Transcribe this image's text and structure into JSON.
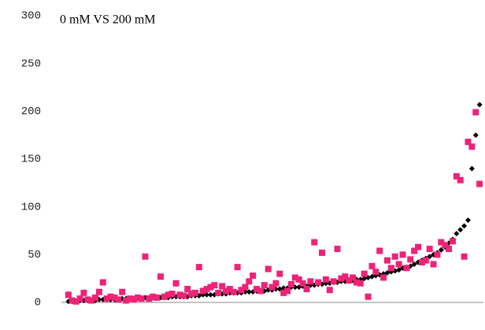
{
  "chart_data": {
    "type": "scatter",
    "title": "0 mM VS 200 mM",
    "x": [
      1,
      2,
      3,
      4,
      5,
      6,
      7,
      8,
      9,
      10,
      11,
      12,
      13,
      14,
      15,
      16,
      17,
      18,
      19,
      20,
      21,
      22,
      23,
      24,
      25,
      26,
      27,
      28,
      29,
      30,
      31,
      32,
      33,
      34,
      35,
      36,
      37,
      38,
      39,
      40,
      41,
      42,
      43,
      44,
      45,
      46,
      47,
      48,
      49,
      50,
      51,
      52,
      53,
      54,
      55,
      56,
      57,
      58,
      59,
      60,
      61,
      62,
      63,
      64,
      65,
      66,
      67,
      68,
      69,
      70,
      71,
      72,
      73,
      74,
      75,
      76,
      77,
      78,
      79,
      80,
      81,
      82,
      83,
      84,
      85,
      86,
      87,
      88,
      89,
      90,
      91,
      92,
      93,
      94,
      95,
      96,
      97,
      98,
      99,
      100,
      101,
      102,
      103,
      104,
      105,
      106,
      107,
      108
    ],
    "series": [
      {
        "color": "#000000",
        "marker": "diamond",
        "values": [
          1,
          1,
          1,
          2,
          2,
          2,
          2,
          2,
          3,
          3,
          3,
          3,
          3,
          3,
          4,
          4,
          4,
          4,
          4,
          4,
          5,
          5,
          5,
          5,
          5,
          5,
          5,
          6,
          6,
          6,
          6,
          6,
          7,
          7,
          7,
          8,
          8,
          8,
          8,
          9,
          9,
          9,
          10,
          10,
          10,
          10,
          11,
          11,
          11,
          12,
          12,
          12,
          13,
          13,
          14,
          14,
          15,
          15,
          16,
          16,
          16,
          17,
          17,
          18,
          18,
          19,
          19,
          20,
          20,
          21,
          21,
          22,
          22,
          23,
          23,
          24,
          24,
          25,
          26,
          27,
          28,
          29,
          30,
          31,
          32,
          33,
          34,
          36,
          37,
          38,
          40,
          42,
          44,
          46,
          48,
          50,
          52,
          55,
          58,
          62,
          66,
          72,
          76,
          80,
          86,
          140,
          175,
          207
        ]
      },
      {
        "color": "#ee2277",
        "marker": "square",
        "values": [
          8,
          2,
          1,
          4,
          10,
          3,
          2,
          5,
          11,
          21,
          4,
          6,
          5,
          3,
          11,
          2,
          4,
          3,
          5,
          4,
          48,
          4,
          6,
          5,
          27,
          6,
          8,
          9,
          20,
          8,
          7,
          14,
          9,
          10,
          37,
          12,
          14,
          16,
          18,
          10,
          17,
          12,
          14,
          11,
          37,
          13,
          16,
          22,
          28,
          14,
          12,
          18,
          35,
          16,
          20,
          30,
          10,
          12,
          19,
          26,
          24,
          20,
          14,
          22,
          63,
          21,
          52,
          24,
          13,
          22,
          56,
          25,
          27,
          23,
          26,
          21,
          20,
          30,
          6,
          38,
          32,
          54,
          26,
          44,
          36,
          48,
          40,
          50,
          36,
          45,
          54,
          58,
          42,
          44,
          56,
          40,
          50,
          63,
          60,
          56,
          64,
          132,
          128,
          48,
          168,
          163,
          199,
          124
        ]
      }
    ],
    "xlim": [
      0,
      109
    ],
    "ylim": [
      0,
      300
    ],
    "yticks": [
      0,
      50,
      100,
      150,
      200,
      250,
      300
    ],
    "grid": false
  }
}
